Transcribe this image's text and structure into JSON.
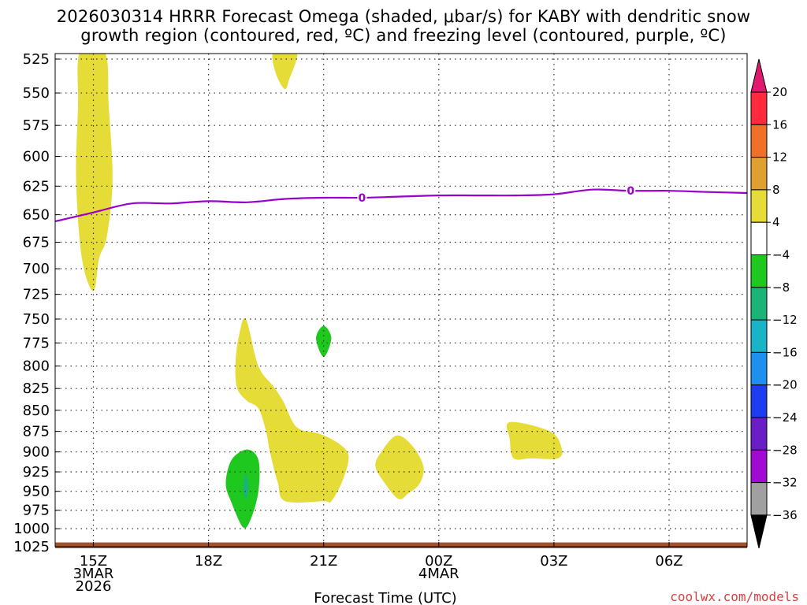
{
  "title": {
    "line1": "2026030314 HRRR Forecast Omega (shaded, μbar/s) for KABY with dendritic snow",
    "line2": "growth region (contoured, red, ºC) and freezing level (contoured, purple, ºC)"
  },
  "footer": {
    "credit": "coolwx.com/models"
  },
  "chart_data": {
    "type": "contour",
    "xlabel": "Forecast Time (UTC)",
    "ylabel": "",
    "x_ticks": [
      {
        "hour": 0,
        "lines": [
          "15Z",
          "3MAR",
          "2026"
        ]
      },
      {
        "hour": 3,
        "lines": [
          "18Z"
        ]
      },
      {
        "hour": 6,
        "lines": [
          "21Z"
        ]
      },
      {
        "hour": 9,
        "lines": [
          "00Z",
          "4MAR"
        ]
      },
      {
        "hour": 12,
        "lines": [
          "03Z"
        ]
      },
      {
        "hour": 15,
        "lines": [
          "06Z"
        ]
      }
    ],
    "xlim_hours": [
      -1,
      17.2
    ],
    "ylim_hpa": [
      1025,
      520
    ],
    "y_ticks": [
      525,
      550,
      575,
      600,
      625,
      650,
      675,
      700,
      725,
      750,
      775,
      800,
      825,
      850,
      875,
      900,
      925,
      950,
      975,
      1000,
      1025
    ],
    "grid": "dotted",
    "colorbar": {
      "levels": [
        20,
        16,
        12,
        8,
        4,
        -4,
        -8,
        -12,
        -16,
        -20,
        -24,
        -28,
        -32,
        -36
      ],
      "colors": [
        "#e8e8e8",
        "#ff2a3c",
        "#f0702a",
        "#e0a030",
        "#e6dc38",
        "#ffffff",
        "#1ec81e",
        "#1ab478",
        "#1ab4c8",
        "#1e90f0",
        "#1e3cf0",
        "#6a1ec8",
        "#a00ad2",
        "#a0a0a0"
      ],
      "top_color": "#e0186e",
      "bottom_color": "#000000"
    },
    "freezing_level": {
      "label": "0",
      "color": "#9900cc",
      "points": [
        [
          -1,
          656
        ],
        [
          0,
          648
        ],
        [
          1,
          640
        ],
        [
          2,
          640
        ],
        [
          3,
          638
        ],
        [
          4,
          639
        ],
        [
          5,
          636
        ],
        [
          6,
          635
        ],
        [
          7,
          635
        ],
        [
          8,
          634
        ],
        [
          9,
          633
        ],
        [
          10,
          633
        ],
        [
          11,
          633
        ],
        [
          12,
          632
        ],
        [
          13,
          628
        ],
        [
          14,
          629
        ],
        [
          15,
          629
        ],
        [
          16,
          630
        ],
        [
          17.2,
          631
        ]
      ],
      "label_hours": [
        7,
        14
      ]
    },
    "omega_regions": [
      {
        "level": "4 to 8",
        "color": "#e6dc38",
        "points": [
          [
            -0.35,
            520
          ],
          [
            0.3,
            520
          ],
          [
            0.4,
            560
          ],
          [
            0.5,
            620
          ],
          [
            0.35,
            670
          ],
          [
            0.15,
            690
          ],
          [
            0,
            722
          ],
          [
            -0.3,
            690
          ],
          [
            -0.45,
            620
          ],
          [
            -0.4,
            560
          ]
        ]
      },
      {
        "level": "4 to 8",
        "color": "#e6dc38",
        "points": [
          [
            4.7,
            520
          ],
          [
            5.3,
            520
          ],
          [
            5.1,
            540
          ],
          [
            4.98,
            547
          ],
          [
            4.75,
            535
          ]
        ]
      },
      {
        "level": "4 to 8",
        "color": "#e6dc38",
        "points": [
          [
            3.97,
            750
          ],
          [
            4.3,
            800
          ],
          [
            4.7,
            823
          ],
          [
            4.95,
            840
          ],
          [
            5.3,
            870
          ],
          [
            5.9,
            878
          ],
          [
            6.4,
            890
          ],
          [
            6.65,
            905
          ],
          [
            6.5,
            935
          ],
          [
            6.2,
            963
          ],
          [
            6,
            963
          ],
          [
            5,
            963
          ],
          [
            4.8,
            938
          ],
          [
            4.6,
            900
          ],
          [
            4.5,
            875
          ],
          [
            4.3,
            848
          ],
          [
            4,
            839
          ],
          [
            3.75,
            825
          ],
          [
            3.7,
            800
          ],
          [
            3.78,
            770
          ]
        ]
      },
      {
        "level": "4 to 8",
        "color": "#e6dc38",
        "points": [
          [
            7.9,
            880
          ],
          [
            8.3,
            892
          ],
          [
            8.6,
            918
          ],
          [
            8.5,
            940
          ],
          [
            8.2,
            953
          ],
          [
            7.95,
            960
          ],
          [
            7.6,
            940
          ],
          [
            7.35,
            918
          ],
          [
            7.5,
            900
          ]
        ]
      },
      {
        "level": "4 to 8",
        "color": "#e6dc38",
        "points": [
          [
            10.85,
            864
          ],
          [
            11.9,
            875
          ],
          [
            12.2,
            895
          ],
          [
            12.1,
            908
          ],
          [
            11.4,
            908
          ],
          [
            10.95,
            908
          ],
          [
            10.85,
            885
          ]
        ]
      },
      {
        "level": "-4 to -8",
        "color": "#1ec81e",
        "points": [
          [
            6,
            757
          ],
          [
            6.2,
            770
          ],
          [
            6,
            790
          ],
          [
            5.8,
            770
          ]
        ]
      },
      {
        "level": "-4 to -8",
        "color": "#1ec81e",
        "points": [
          [
            4,
            897
          ],
          [
            4.3,
            910
          ],
          [
            4.3,
            950
          ],
          [
            4.1,
            987
          ],
          [
            3.9,
            998
          ],
          [
            3.6,
            965
          ],
          [
            3.45,
            940
          ],
          [
            3.6,
            910
          ]
        ]
      },
      {
        "level": "-8 to -12",
        "color": "#1ab478",
        "points": [
          [
            3.97,
            928
          ],
          [
            4.05,
            945
          ],
          [
            3.97,
            960
          ],
          [
            3.9,
            945
          ]
        ]
      }
    ],
    "surface_strip": {
      "color": "#a0522d",
      "from_hpa": 1019,
      "to_hpa": 1026
    }
  }
}
